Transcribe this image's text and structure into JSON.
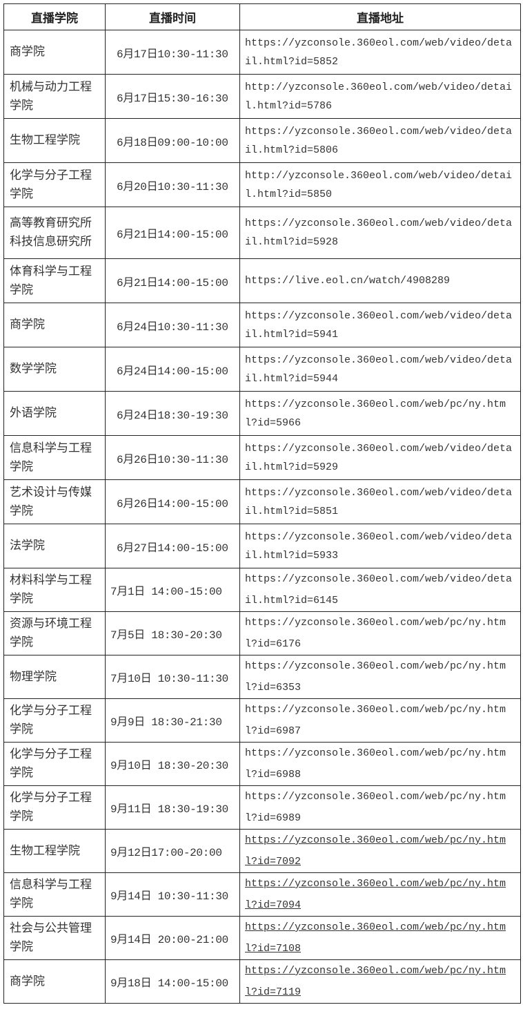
{
  "headers": [
    "直播学院",
    "直播时间",
    "直播地址"
  ],
  "rows": [
    {
      "college": "商学院",
      "time": "6月17日10:30-11:30",
      "url": "https://yzconsole.360eol.com/web/video/detail.html?id=5852"
    },
    {
      "college": "机械与动力工程学院",
      "time": "6月17日15:30-16:30",
      "url": "http://yzconsole.360eol.com/web/video/detail.html?id=5786"
    },
    {
      "college": "生物工程学院",
      "time": "6月18日09:00-10:00",
      "url": "https://yzconsole.360eol.com/web/video/detail.html?id=5806"
    },
    {
      "college": "化学与分子工程学院",
      "time": "6月20日10:30-11:30",
      "url": "http://yzconsole.360eol.com/web/video/detail.html?id=5850"
    },
    {
      "college": "高等教育研究所\n科技信息研究所",
      "time": "6月21日14:00-15:00",
      "url": "https://yzconsole.360eol.com/web/video/detail.html?id=5928"
    },
    {
      "college": "体育科学与工程学院",
      "time": "6月21日14:00-15:00",
      "url": "https://live.eol.cn/watch/4908289"
    },
    {
      "college": "商学院",
      "time": "6月24日10:30-11:30",
      "url": "https://yzconsole.360eol.com/web/video/detail.html?id=5941"
    },
    {
      "college": "数学学院",
      "time": "6月24日14:00-15:00",
      "url": "https://yzconsole.360eol.com/web/video/detail.html?id=5944"
    },
    {
      "college": "外语学院",
      "time": "6月24日18:30-19:30",
      "url": "https://yzconsole.360eol.com/web/pc/ny.html?id=5966"
    },
    {
      "college": "信息科学与工程学院",
      "time": "6月26日10:30-11:30",
      "url": "https://yzconsole.360eol.com/web/video/detail.html?id=5929"
    },
    {
      "college": "艺术设计与传媒学院",
      "time": "6月26日14:00-15:00",
      "url": "https://yzconsole.360eol.com/web/video/detail.html?id=5851"
    },
    {
      "college": "法学院",
      "time": "6月27日14:00-15:00",
      "url": "https://yzconsole.360eol.com/web/video/detail.html?id=5933"
    },
    {
      "college": "材料科学与工程学院",
      "time": "7月1日 14:00-15:00",
      "url": "https://yzconsole.360eol.com/web/video/detail.html?id=6145"
    },
    {
      "college": "资源与环境工程学院",
      "time": "7月5日 18:30-20:30",
      "url": "https://yzconsole.360eol.com/web/pc/ny.html?id=6176"
    },
    {
      "college": "物理学院",
      "time": "7月10日 10:30-11:30",
      "url": "https://yzconsole.360eol.com/web/pc/ny.html?id=6353"
    },
    {
      "college": "化学与分子工程学院",
      "time": "9月9日 18:30-21:30",
      "url": "https://yzconsole.360eol.com/web/pc/ny.html?id=6987"
    },
    {
      "college": "化学与分子工程学院",
      "time": "9月10日 18:30-20:30",
      "url": "https://yzconsole.360eol.com/web/pc/ny.html?id=6988"
    },
    {
      "college": "化学与分子工程学院",
      "time": "9月11日 18:30-19:30",
      "url": "https://yzconsole.360eol.com/web/pc/ny.html?id=6989"
    },
    {
      "college": "生物工程学院",
      "time": "9月12日17:00-20:00",
      "url": "https://yzconsole.360eol.com/web/pc/ny.html?id=7092"
    },
    {
      "college": "信息科学与工程学院",
      "time": "9月14日 10:30-11:30",
      "url": "https://yzconsole.360eol.com/web/pc/ny.html?id=7094"
    },
    {
      "college": "社会与公共管理学院",
      "time": "9月14日 20:00-21:00",
      "url": "https://yzconsole.360eol.com/web/pc/ny.html?id=7108"
    },
    {
      "college": "商学院",
      "time": "9月18日 14:00-15:00",
      "url": "https://yzconsole.360eol.com/web/pc/ny.html?id=7119"
    }
  ]
}
